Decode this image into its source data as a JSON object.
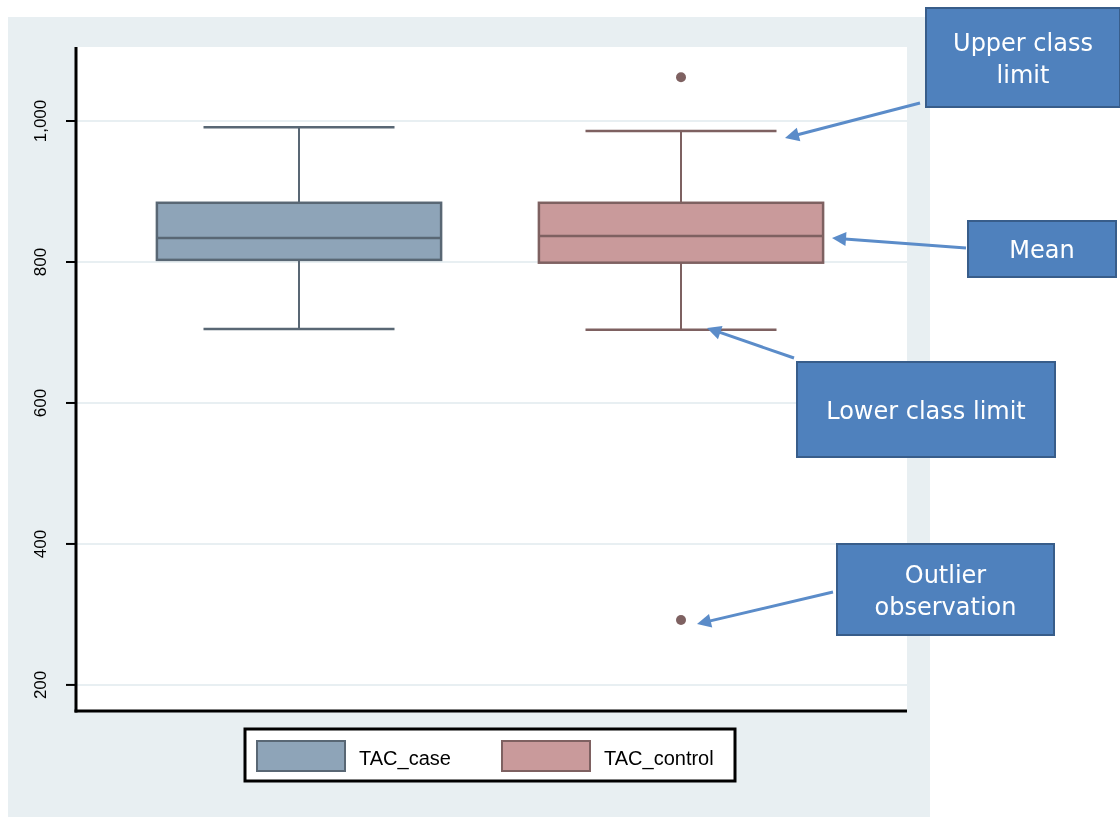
{
  "chart_data": {
    "type": "box",
    "categories": [
      null,
      null
    ],
    "series": [
      {
        "name": "TAC_case",
        "color": "#8ea4b8",
        "boxes": [
          {
            "low": 705,
            "q1": 803,
            "median": 834,
            "q3": 884,
            "high": 991
          },
          null
        ]
      },
      {
        "name": "TAC_control",
        "color": "#c99a9b",
        "boxes": [
          null,
          {
            "low": 704,
            "q1": 799,
            "median": 837,
            "q3": 884,
            "high": 986,
            "outliers": [
              1062,
              292
            ]
          }
        ]
      }
    ],
    "ylim": [
      163,
      1105
    ],
    "yticks": [
      {
        "value": 200,
        "label": "200"
      },
      {
        "value": 400,
        "label": "400"
      },
      {
        "value": 600,
        "label": "600"
      },
      {
        "value": 800,
        "label": "800"
      },
      {
        "value": 1000,
        "label": "1,000"
      }
    ],
    "grid": "y",
    "legend": "bottom",
    "annotations": [
      "Upper class limit",
      "Mean",
      "Lower class limit",
      "Outlier observation"
    ]
  }
}
